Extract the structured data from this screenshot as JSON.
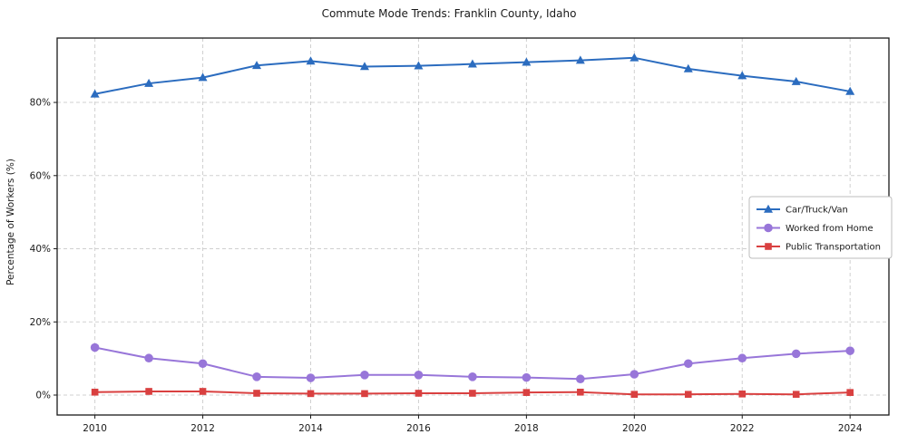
{
  "figure": {
    "background": "#ffffff"
  },
  "chart_data": {
    "type": "line",
    "title": "Commute Mode Trends: Franklin County, Idaho",
    "xlabel": "",
    "ylabel": "Percentage of Workers (%)",
    "x": [
      2010,
      2011,
      2012,
      2013,
      2014,
      2015,
      2016,
      2017,
      2018,
      2019,
      2020,
      2021,
      2022,
      2023,
      2024
    ],
    "xticks": [
      2010,
      2012,
      2014,
      2016,
      2018,
      2020,
      2022,
      2024
    ],
    "xtick_labels": [
      "2010",
      "2012",
      "2014",
      "2016",
      "2018",
      "2020",
      "2022",
      "2024"
    ],
    "yticks": [
      0,
      20,
      40,
      60,
      80
    ],
    "ytick_labels": [
      "0%",
      "20%",
      "40%",
      "60%",
      "80%"
    ],
    "xlim": [
      2009.3,
      2024.72
    ],
    "ylim": [
      -5.45,
      97.6
    ],
    "grid": "dashed",
    "axis_color": "#1a1a1a",
    "grid_color": "#d0d0d0",
    "legend": {
      "position": "center-right",
      "entries": [
        "Car/Truck/Van",
        "Worked from Home",
        "Public Transportation"
      ]
    },
    "series": [
      {
        "name": "Car/Truck/Van",
        "color": "#2b6cbf",
        "marker": "triangle",
        "values": [
          82.3,
          85.2,
          86.8,
          90.1,
          91.3,
          89.8,
          90.0,
          90.5,
          91.0,
          91.5,
          92.2,
          89.2,
          87.3,
          85.7,
          83.0
        ]
      },
      {
        "name": "Worked from Home",
        "color": "#9876d9",
        "marker": "circle",
        "values": [
          13.0,
          10.1,
          8.6,
          5.0,
          4.7,
          5.5,
          5.5,
          5.0,
          4.8,
          4.4,
          5.7,
          8.6,
          10.1,
          11.3,
          12.1
        ]
      },
      {
        "name": "Public Transportation",
        "color": "#d94040",
        "marker": "square",
        "values": [
          0.8,
          1.0,
          1.0,
          0.5,
          0.4,
          0.4,
          0.5,
          0.5,
          0.7,
          0.8,
          0.2,
          0.2,
          0.3,
          0.2,
          0.7
        ]
      }
    ]
  }
}
